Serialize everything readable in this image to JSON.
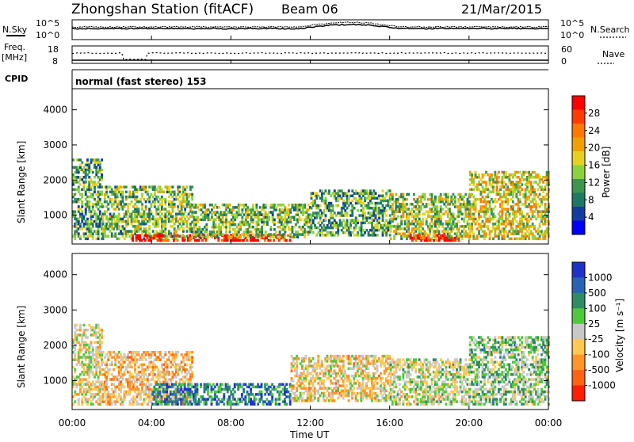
{
  "header": {
    "station": "Zhongshan Station (fitACF)",
    "beam": "Beam 06",
    "date": "21/Mar/2015"
  },
  "noise_panel": {
    "left_label": "N.Sky",
    "right_label": "N.Search",
    "left_ticks": [
      "10^5",
      "10^0"
    ],
    "right_ticks": [
      "10^5",
      "10^0"
    ]
  },
  "freq_panel": {
    "left_label_line1": "Freq.",
    "left_label_line2": "[MHz]",
    "left_ticks": [
      "18",
      "8"
    ],
    "right_label": "Nave",
    "right_ticks": [
      "60",
      "0"
    ]
  },
  "cpid_panel": {
    "label": "CPID",
    "text": "normal (fast stereo) 153"
  },
  "x_axis": {
    "label": "Time UT",
    "ticks": [
      "00:00",
      "04:00",
      "08:00",
      "12:00",
      "16:00",
      "20:00",
      "00:00"
    ]
  },
  "power_panel": {
    "ylabel": "Slant Range [km]",
    "yticks": [
      "4000",
      "3000",
      "2000",
      "1000"
    ],
    "colorbar_label": "Power [dB]",
    "colorbar_ticks": [
      "28",
      "24",
      "20",
      "16",
      "12",
      "8",
      "4"
    ],
    "colorbar_colors": [
      "#ff0000",
      "#ff3c00",
      "#ff7800",
      "#f0a000",
      "#e6d21e",
      "#8cd23c",
      "#3c9650",
      "#1e7864",
      "#143ca0",
      "#0000ff"
    ]
  },
  "velocity_panel": {
    "ylabel": "Slant Range [km]",
    "yticks": [
      "4000",
      "3000",
      "2000",
      "1000"
    ],
    "colorbar_label": "Velocity [m s⁻¹]",
    "colorbar_ticks": [
      "1000",
      "500",
      "100",
      "25",
      "-25",
      "-100",
      "-500",
      "-1000"
    ],
    "colorbar_colors": [
      "#1e32c8",
      "#2864b4",
      "#2d8c64",
      "#50c83c",
      "#c8c8c8",
      "#ffc850",
      "#ff9628",
      "#ff6414",
      "#ff1e00"
    ]
  },
  "chart_data": [
    {
      "type": "heatmap",
      "title": "Zhongshan Station (fitACF) Beam 06 21/Mar/2015",
      "xlabel": "Time UT",
      "ylabel": "Slant Range [km]",
      "xlim": [
        "00:00",
        "24:00"
      ],
      "ylim": [
        180,
        4600
      ],
      "colorbar": "Power [dB]",
      "colorbar_range": [
        0,
        30
      ],
      "scatter_regions": [
        {
          "t_start": 0.0,
          "t_end": 1.5,
          "range_min": 300,
          "range_max": 2600,
          "typical_power": 12
        },
        {
          "t_start": 1.5,
          "t_end": 6.0,
          "range_min": 300,
          "range_max": 1800,
          "typical_power": 14
        },
        {
          "t_start": 3.0,
          "t_end": 11.0,
          "range_min": 250,
          "range_max": 450,
          "typical_power": 29
        },
        {
          "t_start": 6.0,
          "t_end": 12.0,
          "range_min": 350,
          "range_max": 1300,
          "typical_power": 14
        },
        {
          "t_start": 12.0,
          "t_end": 16.0,
          "range_min": 400,
          "range_max": 1700,
          "typical_power": 12
        },
        {
          "t_start": 16.0,
          "t_end": 20.0,
          "range_min": 300,
          "range_max": 1600,
          "typical_power": 16
        },
        {
          "t_start": 17.0,
          "t_end": 19.5,
          "range_min": 250,
          "range_max": 400,
          "typical_power": 29
        },
        {
          "t_start": 20.0,
          "t_end": 24.0,
          "range_min": 300,
          "range_max": 2200,
          "typical_power": 18
        }
      ]
    },
    {
      "type": "heatmap",
      "title": "",
      "xlabel": "Time UT",
      "ylabel": "Slant Range [km]",
      "xlim": [
        "00:00",
        "24:00"
      ],
      "ylim": [
        180,
        4600
      ],
      "colorbar": "Velocity [m s⁻¹]",
      "colorbar_range": [
        -1000,
        1000
      ],
      "scatter_regions": [
        {
          "t_start": 0.0,
          "t_end": 1.5,
          "range_min": 300,
          "range_max": 2600,
          "typical_velocity": -100
        },
        {
          "t_start": 1.5,
          "t_end": 6.0,
          "range_min": 300,
          "range_max": 1800,
          "typical_velocity": -300
        },
        {
          "t_start": 4.0,
          "t_end": 11.0,
          "range_min": 300,
          "range_max": 900,
          "typical_velocity": 600
        },
        {
          "t_start": 11.0,
          "t_end": 16.0,
          "range_min": 400,
          "range_max": 1700,
          "typical_velocity": -200
        },
        {
          "t_start": 16.0,
          "t_end": 20.0,
          "range_min": 300,
          "range_max": 1600,
          "typical_velocity": 0
        },
        {
          "t_start": 20.0,
          "t_end": 24.0,
          "range_min": 300,
          "range_max": 2200,
          "typical_velocity": 200
        }
      ]
    }
  ]
}
